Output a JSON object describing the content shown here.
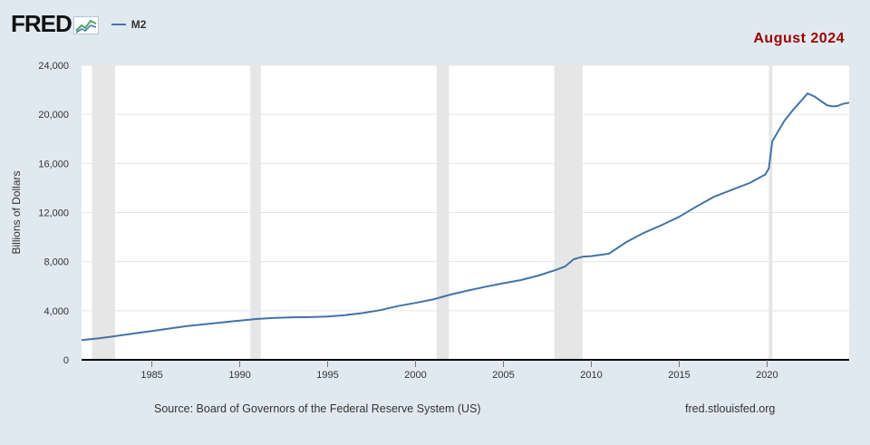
{
  "header": {
    "logo_text": "FRED",
    "logo_mark": "fred-chart-logo-icon",
    "series_label": "M2",
    "date_badge": "August 2024"
  },
  "footer": {
    "source": "Source: Board of Governors of the Federal Reserve System (US)",
    "site": "fred.stlouisfed.org"
  },
  "colors": {
    "line": "#4572a7",
    "plot_bg": "#ffffff",
    "page_bg": "#e1e9f0",
    "recession": "#e6e6e6",
    "grid": "#e6e6e6",
    "axis": "#000000",
    "badge": "#990000"
  },
  "chart_data": {
    "type": "line",
    "ylabel": "Billions of Dollars",
    "xlabel": "",
    "xlim": [
      1981.0,
      2024.67
    ],
    "ylim": [
      0,
      24000
    ],
    "yticks": [
      0,
      4000,
      8000,
      12000,
      16000,
      20000,
      24000
    ],
    "ytick_labels": [
      "0",
      "4,000",
      "8,000",
      "12,000",
      "16,000",
      "20,000",
      "24,000"
    ],
    "xticks": [
      1985,
      1990,
      1995,
      2000,
      2005,
      2010,
      2015,
      2020
    ],
    "xtick_labels": [
      "1985",
      "1990",
      "1995",
      "2000",
      "2005",
      "2010",
      "2015",
      "2020"
    ],
    "grid": "horizontal",
    "recessions": [
      [
        1981.6,
        1982.9
      ],
      [
        1990.6,
        1991.2
      ],
      [
        2001.2,
        2001.9
      ],
      [
        2007.9,
        2009.5
      ],
      [
        2020.1,
        2020.3
      ]
    ],
    "series": [
      {
        "name": "M2",
        "x": [
          1981.0,
          1982.0,
          1983.0,
          1984.0,
          1985.0,
          1986.0,
          1987.0,
          1988.0,
          1989.0,
          1990.0,
          1991.0,
          1992.0,
          1993.0,
          1994.0,
          1995.0,
          1996.0,
          1997.0,
          1998.0,
          1999.0,
          2000.0,
          2001.0,
          2002.0,
          2003.0,
          2004.0,
          2005.0,
          2006.0,
          2007.0,
          2008.0,
          2008.5,
          2009.0,
          2009.5,
          2010.0,
          2011.0,
          2012.0,
          2013.0,
          2014.0,
          2015.0,
          2016.0,
          2017.0,
          2018.0,
          2019.0,
          2019.9,
          2020.1,
          2020.3,
          2020.5,
          2021.0,
          2021.5,
          2022.0,
          2022.3,
          2022.7,
          2023.0,
          2023.4,
          2023.7,
          2024.0,
          2024.3,
          2024.67
        ],
        "values": [
          1600,
          1760,
          1950,
          2150,
          2350,
          2550,
          2750,
          2900,
          3050,
          3200,
          3330,
          3420,
          3460,
          3480,
          3520,
          3640,
          3810,
          4050,
          4380,
          4640,
          4920,
          5320,
          5650,
          5960,
          6240,
          6500,
          6870,
          7330,
          7600,
          8200,
          8400,
          8450,
          8650,
          9600,
          10350,
          10970,
          11650,
          12500,
          13300,
          13850,
          14400,
          15100,
          15600,
          17800,
          18300,
          19500,
          20400,
          21200,
          21700,
          21450,
          21150,
          20750,
          20650,
          20680,
          20850,
          20950
        ]
      }
    ]
  }
}
